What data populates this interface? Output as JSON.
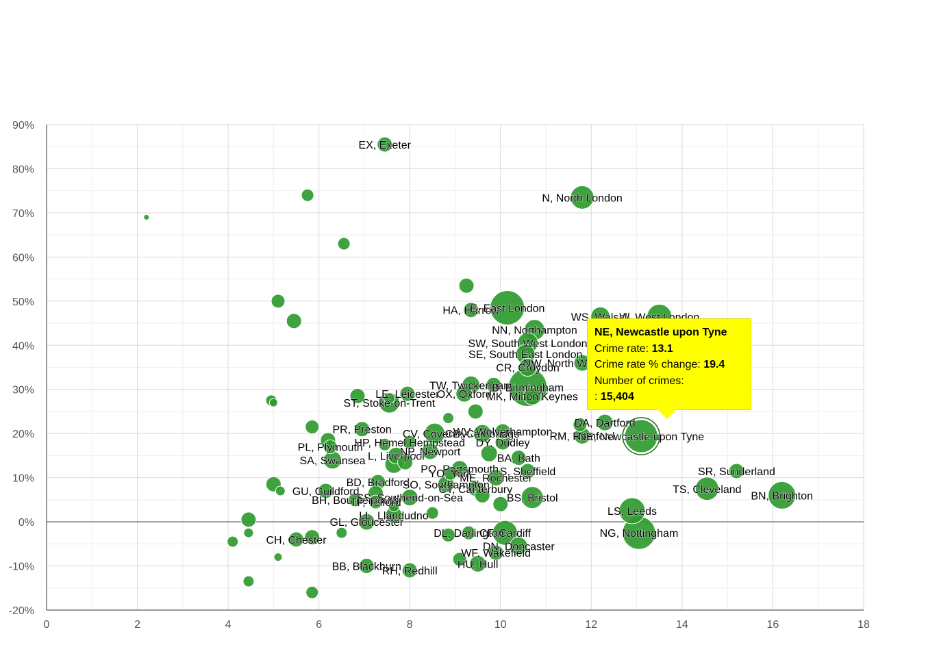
{
  "chart_data": {
    "type": "scatter",
    "title": "",
    "xlabel": "",
    "ylabel": "",
    "xlim": [
      0,
      18
    ],
    "ylim": [
      -20,
      90
    ],
    "x_ticks": [
      0,
      2,
      4,
      6,
      8,
      10,
      12,
      14,
      16,
      18
    ],
    "y_ticks": [
      -20,
      -10,
      0,
      10,
      20,
      30,
      40,
      50,
      60,
      70,
      80,
      90
    ],
    "x_tick_labels": [
      "0",
      "2",
      "4",
      "6",
      "8",
      "10",
      "12",
      "14",
      "16",
      "18"
    ],
    "y_tick_labels": [
      "-20%",
      "-10%",
      "0%",
      "10%",
      "20%",
      "30%",
      "40%",
      "50%",
      "60%",
      "70%",
      "80%",
      "90%"
    ],
    "grid": true,
    "colors": {
      "bubble": "#2e9a2e",
      "bubble_stroke": "#ffffff",
      "grid": "#d9d9d9",
      "zero_line": "#333333",
      "tooltip_bg": "#ffff00"
    },
    "series": [
      {
        "name": "Postcode areas",
        "points": [
          {
            "x": 2.2,
            "y": 69,
            "size": 4
          },
          {
            "x": 7.45,
            "y": 85.5,
            "size": 11,
            "label": "EX, Exeter"
          },
          {
            "x": 5.75,
            "y": 74,
            "size": 9
          },
          {
            "x": 11.8,
            "y": 73.5,
            "size": 17,
            "label": "N, North London"
          },
          {
            "x": 6.55,
            "y": 63,
            "size": 9
          },
          {
            "x": 9.25,
            "y": 53.5,
            "size": 11
          },
          {
            "x": 5.1,
            "y": 50,
            "size": 10
          },
          {
            "x": 5.45,
            "y": 45.5,
            "size": 11
          },
          {
            "x": 9.35,
            "y": 48,
            "size": 11,
            "label": "HA, Harrow"
          },
          {
            "x": 10.15,
            "y": 48.5,
            "size": 25,
            "label": "E, East London"
          },
          {
            "x": 12.2,
            "y": 46.5,
            "size": 14,
            "label": "WS, Walsall"
          },
          {
            "x": 13.5,
            "y": 46.5,
            "size": 18,
            "label": "W, West London"
          },
          {
            "x": 10.75,
            "y": 43.5,
            "size": 15,
            "label": "NN, Northampton"
          },
          {
            "x": 10.6,
            "y": 40.5,
            "size": 15,
            "label": "SW, South West London"
          },
          {
            "x": 10.55,
            "y": 38,
            "size": 14,
            "label": "SE, South East London"
          },
          {
            "x": 11.8,
            "y": 36,
            "size": 12,
            "label": "NW, North West London"
          },
          {
            "x": 10.6,
            "y": 35,
            "size": 13,
            "label": "CR, Croydon"
          },
          {
            "x": 9.35,
            "y": 31,
            "size": 13,
            "label": "TW, Twickenham"
          },
          {
            "x": 9.85,
            "y": 31,
            "size": 11
          },
          {
            "x": 10.6,
            "y": 30.5,
            "size": 28,
            "label": "B, Birmingham"
          },
          {
            "x": 9.2,
            "y": 29,
            "size": 12,
            "label": "OX, Oxford"
          },
          {
            "x": 10.7,
            "y": 28.5,
            "size": 13,
            "label": "MK, Milton Keynes"
          },
          {
            "x": 7.95,
            "y": 29,
            "size": 11,
            "label": "LE, Leicester"
          },
          {
            "x": 6.85,
            "y": 28.5,
            "size": 11
          },
          {
            "x": 7.55,
            "y": 27,
            "size": 15,
            "label": "ST, Stoke-on-Trent"
          },
          {
            "x": 7.55,
            "y": 28,
            "size": 8
          },
          {
            "x": 4.95,
            "y": 27.5,
            "size": 8
          },
          {
            "x": 5.0,
            "y": 27,
            "size": 6
          },
          {
            "x": 9.45,
            "y": 25,
            "size": 11
          },
          {
            "x": 8.85,
            "y": 23.5,
            "size": 8
          },
          {
            "x": 12.3,
            "y": 22.5,
            "size": 12,
            "label": "DA, Dartford"
          },
          {
            "x": 5.85,
            "y": 21.5,
            "size": 10
          },
          {
            "x": 6.95,
            "y": 21,
            "size": 11,
            "label": "PR, Preston"
          },
          {
            "x": 8.55,
            "y": 20,
            "size": 15,
            "label": "CV, Coventry"
          },
          {
            "x": 9.6,
            "y": 20,
            "size": 13,
            "label": "CB, Cambridge"
          },
          {
            "x": 11.8,
            "y": 19.5,
            "size": 12,
            "label": "RM, Romford"
          },
          {
            "x": 13.1,
            "y": 19.4,
            "size": 24,
            "label": "NE, Newcastle upon Tyne"
          },
          {
            "x": 6.2,
            "y": 18.5,
            "size": 11
          },
          {
            "x": 7.45,
            "y": 17.5,
            "size": 9
          },
          {
            "x": 8.0,
            "y": 18,
            "size": 10,
            "label": "HP, Hemel Hempstead"
          },
          {
            "x": 10.05,
            "y": 18,
            "size": 11,
            "label": "DY, Dudley"
          },
          {
            "x": 6.25,
            "y": 17,
            "size": 10,
            "label": "PL, Plymouth"
          },
          {
            "x": 7.7,
            "y": 15,
            "size": 12,
            "label": "L, Liverpool"
          },
          {
            "x": 8.45,
            "y": 16,
            "size": 12,
            "label": "NP, Newport"
          },
          {
            "x": 9.75,
            "y": 15.5,
            "size": 12
          },
          {
            "x": 10.4,
            "y": 14.5,
            "size": 11,
            "label": "BA, Bath"
          },
          {
            "x": 6.3,
            "y": 14,
            "size": 13,
            "label": "SA, Swansea"
          },
          {
            "x": 7.9,
            "y": 13.5,
            "size": 11
          },
          {
            "x": 7.65,
            "y": 13,
            "size": 13
          },
          {
            "x": 9.1,
            "y": 12,
            "size": 12,
            "label": "PO, Portsmouth"
          },
          {
            "x": 10.6,
            "y": 11.5,
            "size": 11,
            "label": "S, Sheffield"
          },
          {
            "x": 8.9,
            "y": 11,
            "size": 10,
            "label": "YO, York"
          },
          {
            "x": 9.9,
            "y": 10,
            "size": 12,
            "label": "ME, Rochester"
          },
          {
            "x": 7.3,
            "y": 9,
            "size": 11,
            "label": "BD, Bradford"
          },
          {
            "x": 8.8,
            "y": 8.5,
            "size": 12,
            "label": "SO, Southampton"
          },
          {
            "x": 5.0,
            "y": 8.5,
            "size": 11
          },
          {
            "x": 9.45,
            "y": 7.5,
            "size": 11,
            "label": "CT, Canterbury"
          },
          {
            "x": 6.15,
            "y": 7,
            "size": 11,
            "label": "GU, Guildford"
          },
          {
            "x": 5.15,
            "y": 7,
            "size": 7
          },
          {
            "x": 7.25,
            "y": 6.5,
            "size": 11
          },
          {
            "x": 10.7,
            "y": 5.5,
            "size": 16,
            "label": "BS, Bristol"
          },
          {
            "x": 9.6,
            "y": 6,
            "size": 11
          },
          {
            "x": 8.0,
            "y": 5.5,
            "size": 12,
            "label": "SS, Southend-on-Sea"
          },
          {
            "x": 6.8,
            "y": 5,
            "size": 10,
            "label": "BH, Bournemouth"
          },
          {
            "x": 7.25,
            "y": 4.5,
            "size": 10,
            "label": "TF, Telford"
          },
          {
            "x": 10.0,
            "y": 4,
            "size": 11
          },
          {
            "x": 7.65,
            "y": 3.5,
            "size": 8
          },
          {
            "x": 12.9,
            "y": 2.5,
            "size": 19,
            "label": "LS, Leeds"
          },
          {
            "x": 8.5,
            "y": 2,
            "size": 9
          },
          {
            "x": 7.65,
            "y": 1.5,
            "size": 12,
            "label": "LL, Llandudno"
          },
          {
            "x": 4.45,
            "y": 0.5,
            "size": 11
          },
          {
            "x": 7.05,
            "y": 0,
            "size": 12,
            "label": "GL, Gloucester"
          },
          {
            "x": 4.45,
            "y": -2.5,
            "size": 7
          },
          {
            "x": 6.5,
            "y": -2.5,
            "size": 8
          },
          {
            "x": 9.3,
            "y": -2.5,
            "size": 10,
            "label": "DL, Darlington"
          },
          {
            "x": 8.85,
            "y": -3,
            "size": 10
          },
          {
            "x": 10.1,
            "y": -2.5,
            "size": 18,
            "label": "CF, Cardiff"
          },
          {
            "x": 13.05,
            "y": -2.5,
            "size": 24,
            "label": "NG, Nottingham"
          },
          {
            "x": 5.5,
            "y": -4,
            "size": 11,
            "label": "CH, Chester"
          },
          {
            "x": 5.85,
            "y": -3.5,
            "size": 11
          },
          {
            "x": 4.1,
            "y": -4.5,
            "size": 8
          },
          {
            "x": 10.4,
            "y": -5.5,
            "size": 13,
            "label": "DN, Doncaster"
          },
          {
            "x": 9.9,
            "y": -7,
            "size": 11,
            "label": "WF, Wakefield"
          },
          {
            "x": 5.1,
            "y": -8,
            "size": 6
          },
          {
            "x": 9.1,
            "y": -8.5,
            "size": 10
          },
          {
            "x": 9.5,
            "y": -9.5,
            "size": 12,
            "label": "HU, Hull"
          },
          {
            "x": 7.05,
            "y": -10,
            "size": 11,
            "label": "BB, Blackburn"
          },
          {
            "x": 8.0,
            "y": -11,
            "size": 11,
            "label": "RH, Redhill"
          },
          {
            "x": 4.45,
            "y": -13.5,
            "size": 8
          },
          {
            "x": 5.85,
            "y": -16,
            "size": 9
          },
          {
            "x": 15.2,
            "y": 11.5,
            "size": 11,
            "label": "SR, Sunderland"
          },
          {
            "x": 14.55,
            "y": 7.5,
            "size": 17,
            "label": "TS, Cleveland"
          },
          {
            "x": 16.2,
            "y": 6,
            "size": 20,
            "label": "BN, Brighton"
          },
          {
            "x": 11.75,
            "y": 22,
            "size": 10
          },
          {
            "x": 10.05,
            "y": 20.5,
            "size": 11,
            "label": "WV, Wolverhampton"
          }
        ]
      }
    ],
    "tooltip": {
      "title": "NE, Newcastle upon Tyne",
      "rate_label": "Crime rate:",
      "rate_value": "13.1",
      "change_label": "Crime rate % change:",
      "change_value": "19.4",
      "count_label": "Number of crimes:",
      "count_prefix": ":",
      "count_value": "15,404"
    }
  }
}
